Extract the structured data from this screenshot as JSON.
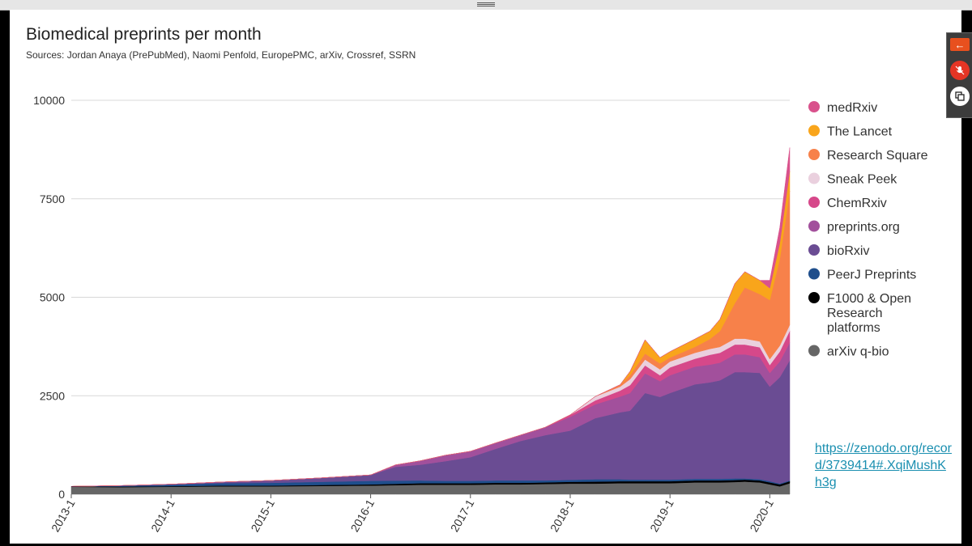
{
  "window": {
    "drag_handle_icon": "drag-handle-icon",
    "side_panel": {
      "back_icon": "arrow-left-icon",
      "mic_icon": "microphone-muted-icon",
      "copy_icon": "copy-window-icon",
      "back_color": "#e8501e",
      "mic_color": "#e53525"
    }
  },
  "link": {
    "text": "https://zenodo.org/record/3739414#.XqiMushKh3g"
  },
  "chart_data": {
    "type": "area",
    "stacked": true,
    "title": "Biomedical preprints per month",
    "subtitle": "Sources: Jordan Anaya (PrePubMed), Naomi Penfold, EuropePMC, arXiv, Crossref, SSRN",
    "xlabel": "",
    "ylabel": "",
    "ylim": [
      0,
      10000
    ],
    "yticks": [
      0,
      2500,
      5000,
      7500,
      10000
    ],
    "ytick_labels": [
      "0",
      "2500",
      "5000",
      "7500",
      "10000"
    ],
    "xlim": [
      2013.0,
      2020.2
    ],
    "xticks": [
      2013.0,
      2014.0,
      2015.0,
      2016.0,
      2017.0,
      2018.0,
      2019.0,
      2020.0
    ],
    "xtick_labels": [
      "2013-1",
      "2014-1",
      "2015-1",
      "2016-1",
      "2017-1",
      "2018-1",
      "2019-1",
      "2020-1"
    ],
    "grid": true,
    "legend_position": "right",
    "x": [
      2013.0,
      2013.5,
      2014.0,
      2014.5,
      2015.0,
      2015.5,
      2016.0,
      2016.25,
      2016.5,
      2016.75,
      2017.0,
      2017.25,
      2017.5,
      2017.75,
      2018.0,
      2018.25,
      2018.5,
      2018.6,
      2018.75,
      2018.9,
      2019.0,
      2019.25,
      2019.4,
      2019.5,
      2019.65,
      2019.75,
      2019.9,
      2020.0,
      2020.1,
      2020.2
    ],
    "series": [
      {
        "name": "arXiv q-bio",
        "color": "#666666",
        "values": [
          190,
          180,
          190,
          200,
          200,
          210,
          220,
          230,
          240,
          240,
          240,
          250,
          250,
          260,
          270,
          270,
          280,
          280,
          280,
          280,
          280,
          300,
          300,
          300,
          310,
          320,
          300,
          250,
          200,
          280
        ]
      },
      {
        "name": "F1000 & Open Research platforms",
        "color": "#000000",
        "values": [
          10,
          15,
          15,
          20,
          20,
          25,
          30,
          35,
          40,
          40,
          40,
          40,
          40,
          40,
          45,
          50,
          50,
          50,
          50,
          50,
          50,
          50,
          50,
          50,
          50,
          50,
          50,
          50,
          50,
          50
        ]
      },
      {
        "name": "PeerJ Preprints",
        "color": "#1f4e8c",
        "values": [
          0,
          20,
          40,
          60,
          70,
          80,
          90,
          80,
          70,
          60,
          60,
          60,
          60,
          50,
          50,
          60,
          50,
          40,
          40,
          40,
          40,
          40,
          40,
          40,
          40,
          30,
          30,
          30,
          20,
          20
        ]
      },
      {
        "name": "bioRxiv",
        "color": "#6a4c93",
        "values": [
          0,
          5,
          10,
          30,
          60,
          100,
          150,
          350,
          400,
          500,
          600,
          800,
          1000,
          1150,
          1250,
          1550,
          1700,
          1750,
          2200,
          2100,
          2200,
          2400,
          2450,
          2500,
          2700,
          2700,
          2700,
          2400,
          2700,
          3050
        ]
      },
      {
        "name": "preprints.org",
        "color": "#a2509c",
        "values": [
          0,
          0,
          0,
          0,
          0,
          0,
          0,
          50,
          100,
          150,
          150,
          150,
          150,
          200,
          350,
          350,
          400,
          450,
          500,
          400,
          450,
          450,
          450,
          450,
          450,
          450,
          400,
          350,
          400,
          450
        ]
      },
      {
        "name": "ChemRxiv",
        "color": "#d6488a",
        "values": [
          0,
          0,
          0,
          0,
          0,
          0,
          0,
          0,
          0,
          0,
          0,
          0,
          0,
          0,
          50,
          100,
          150,
          200,
          200,
          150,
          200,
          200,
          250,
          250,
          250,
          250,
          250,
          200,
          250,
          300
        ]
      },
      {
        "name": "Sneak Peek",
        "color": "#ead0de",
        "values": [
          0,
          0,
          0,
          0,
          0,
          0,
          0,
          0,
          0,
          0,
          0,
          0,
          0,
          0,
          0,
          100,
          100,
          150,
          150,
          150,
          150,
          150,
          150,
          150,
          150,
          150,
          150,
          150,
          150,
          150
        ]
      },
      {
        "name": "Research Square",
        "color": "#f7814a",
        "values": [
          0,
          0,
          0,
          0,
          0,
          0,
          0,
          0,
          0,
          0,
          0,
          0,
          0,
          0,
          0,
          0,
          50,
          100,
          150,
          150,
          100,
          150,
          250,
          400,
          900,
          1300,
          1200,
          1500,
          2200,
          3400
        ]
      },
      {
        "name": "The Lancet",
        "color": "#f9a51b",
        "values": [
          0,
          0,
          0,
          0,
          0,
          0,
          0,
          0,
          0,
          0,
          0,
          0,
          0,
          0,
          0,
          0,
          0,
          100,
          350,
          150,
          150,
          200,
          200,
          300,
          500,
          400,
          350,
          300,
          400,
          500
        ]
      },
      {
        "name": "medRxiv",
        "color": "#d9528c",
        "values": [
          0,
          0,
          0,
          0,
          0,
          0,
          0,
          0,
          0,
          0,
          0,
          0,
          0,
          0,
          0,
          0,
          0,
          0,
          0,
          0,
          0,
          0,
          0,
          0,
          0,
          0,
          0,
          200,
          400,
          600
        ]
      }
    ]
  }
}
